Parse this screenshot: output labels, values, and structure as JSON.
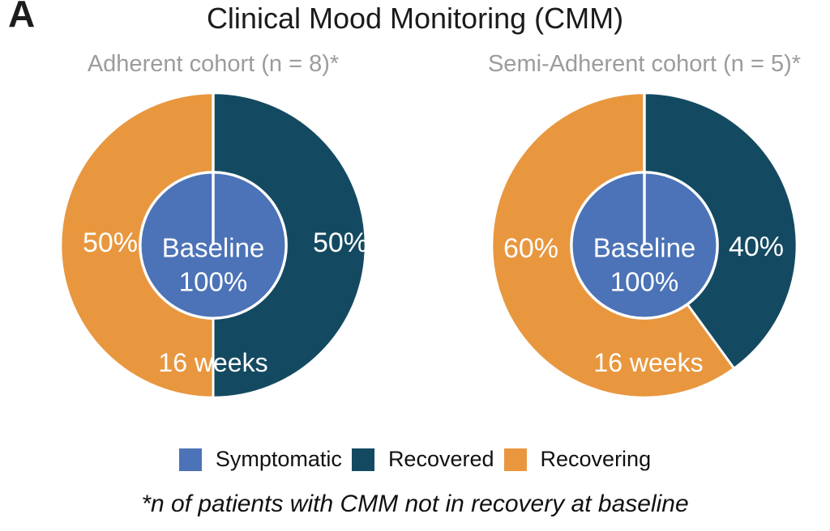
{
  "panel_label": "A",
  "title": "Clinical Mood Monitoring (CMM)",
  "colors": {
    "symptomatic_blue": "#4C73B7",
    "recovered_teal": "#144A61",
    "recovering_orange": "#E8973F",
    "subtitle_gray": "#9C9C9C",
    "donut_label_white": "#FFFFFF"
  },
  "charts": [
    {
      "subtitle": "Adherent cohort (n = 8)*",
      "left_label": "50%",
      "right_label": "50%",
      "center_line1": "Baseline",
      "center_line2": "100%",
      "bottom_label": "16 weeks"
    },
    {
      "subtitle": "Semi-Adherent cohort (n = 5)*",
      "left_label": "60%",
      "right_label": "40%",
      "center_line1": "Baseline",
      "center_line2": "100%",
      "bottom_label": "16 weeks"
    }
  ],
  "legend": {
    "items": [
      {
        "label": "Symptomatic",
        "color": "#4C73B7"
      },
      {
        "label": "Recovered",
        "color": "#144A61"
      },
      {
        "label": "Recovering",
        "color": "#E8973F"
      }
    ]
  },
  "footnote": "*n of patients with CMM not in recovery at baseline",
  "chart_data": [
    {
      "type": "pie",
      "subtype": "donut",
      "title": "Adherent cohort (n = 8)*",
      "start_angle": "12 o'clock",
      "direction": "clockwise",
      "slices": [
        {
          "label": "Recovered",
          "value": 50,
          "color": "#144A61",
          "data_label": "50%"
        },
        {
          "label": "Recovering",
          "value": 50,
          "color": "#E8973F",
          "data_label": "50%"
        }
      ],
      "inner_circle": {
        "line1": "Baseline",
        "line2": "100%",
        "category": "Symptomatic",
        "color": "#4C73B7"
      },
      "ring_time_label": "16 weeks"
    },
    {
      "type": "pie",
      "subtype": "donut",
      "title": "Semi-Adherent cohort (n = 5)*",
      "start_angle": "12 o'clock",
      "direction": "clockwise",
      "slices": [
        {
          "label": "Recovered",
          "value": 40,
          "color": "#144A61",
          "data_label": "40%"
        },
        {
          "label": "Recovering",
          "value": 60,
          "color": "#E8973F",
          "data_label": "60%"
        }
      ],
      "inner_circle": {
        "line1": "Baseline",
        "line2": "100%",
        "category": "Symptomatic",
        "color": "#4C73B7"
      },
      "ring_time_label": "16 weeks"
    }
  ]
}
